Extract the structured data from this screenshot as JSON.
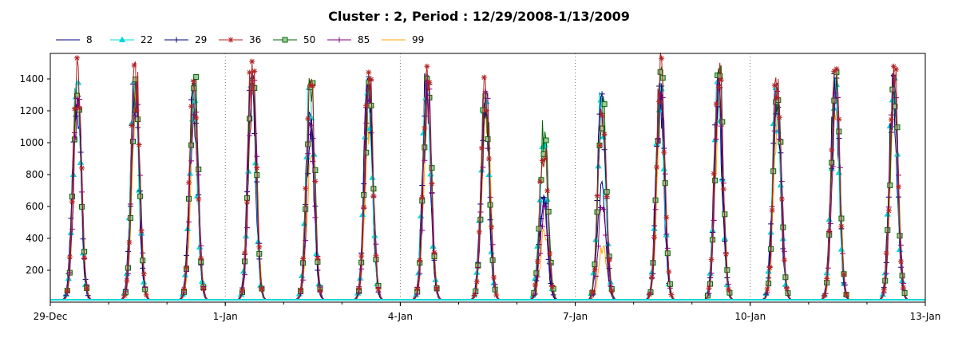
{
  "chart_data": {
    "type": "line",
    "title": "Cluster : 2, Period : 12/29/2008-1/13/2009",
    "xlabel": "",
    "ylabel": "",
    "x_start": "2008-12-29",
    "x_end": "2009-01-13",
    "xlim": [
      "2008-12-29",
      "2009-01-13"
    ],
    "ylim": [
      0,
      1560
    ],
    "y_ticks": [
      200,
      400,
      600,
      800,
      1000,
      1200,
      1400
    ],
    "x_ticks": [
      {
        "date": "2008-12-29",
        "label": "29-Dec"
      },
      {
        "date": "2009-01-01",
        "label": "1-Jan"
      },
      {
        "date": "2009-01-04",
        "label": "4-Jan"
      },
      {
        "date": "2009-01-07",
        "label": "7-Jan"
      },
      {
        "date": "2009-01-10",
        "label": "10-Jan"
      },
      {
        "date": "2009-01-13",
        "label": "13-Jan"
      }
    ],
    "grid": true,
    "legend_position": "top",
    "daily_peaks": {
      "dates": [
        "2008-12-29",
        "2008-12-30",
        "2008-12-31",
        "2009-01-01",
        "2009-01-02",
        "2009-01-03",
        "2009-01-04",
        "2009-01-05",
        "2009-01-06",
        "2009-01-07",
        "2009-01-08",
        "2009-01-09",
        "2009-01-10",
        "2009-01-11",
        "2009-01-12"
      ],
      "series": [
        {
          "name": "8",
          "color": "#00008B",
          "marker": "none",
          "peaks": [
            1350,
            1380,
            1340,
            1400,
            1200,
            1380,
            1400,
            1310,
            650,
            750,
            1350,
            1380,
            1380,
            1380,
            1400
          ]
        },
        {
          "name": "22",
          "color": "#00D8D8",
          "marker": "triangle",
          "peaks": [
            1340,
            1380,
            1300,
            1380,
            1350,
            1350,
            1400,
            1300,
            1000,
            1300,
            1370,
            1370,
            1370,
            1380,
            1380
          ]
        },
        {
          "name": "29",
          "color": "#000080",
          "marker": "plus",
          "peaks": [
            1380,
            1380,
            1380,
            1420,
            1130,
            1400,
            1430,
            1310,
            660,
            1340,
            1360,
            1420,
            1360,
            1400,
            1420
          ]
        },
        {
          "name": "36",
          "color": "#B22222",
          "marker": "star",
          "peaks": [
            1490,
            1490,
            1410,
            1530,
            1380,
            1470,
            1450,
            1410,
            1000,
            1350,
            1530,
            1500,
            1420,
            1460,
            1500
          ]
        },
        {
          "name": "50",
          "color": "#006400",
          "marker": "square",
          "peaks": [
            1350,
            1400,
            1390,
            1380,
            1380,
            1420,
            1420,
            1360,
            1110,
            1300,
            1480,
            1460,
            1400,
            1400,
            1420
          ]
        },
        {
          "name": "85",
          "color": "#800080",
          "marker": "plus",
          "peaks": [
            1300,
            1350,
            1300,
            1400,
            1100,
            1380,
            1350,
            1300,
            600,
            600,
            1300,
            1400,
            1350,
            1300,
            1380
          ]
        },
        {
          "name": "99",
          "color": "#FFA500",
          "marker": "none",
          "peaks": [
            1250,
            1300,
            1200,
            1380,
            900,
            1200,
            1250,
            1250,
            450,
            350,
            1250,
            1300,
            1200,
            1250,
            1300
          ]
        }
      ]
    },
    "series": [
      {
        "name": "8",
        "color": "#00008B",
        "marker": "none"
      },
      {
        "name": "22",
        "color": "#00D8D8",
        "marker": "triangle"
      },
      {
        "name": "29",
        "color": "#000080",
        "marker": "plus"
      },
      {
        "name": "36",
        "color": "#B22222",
        "marker": "star"
      },
      {
        "name": "50",
        "color": "#006400",
        "marker": "square"
      },
      {
        "name": "85",
        "color": "#800080",
        "marker": "plus"
      },
      {
        "name": "99",
        "color": "#FFA500",
        "marker": "none"
      }
    ]
  }
}
